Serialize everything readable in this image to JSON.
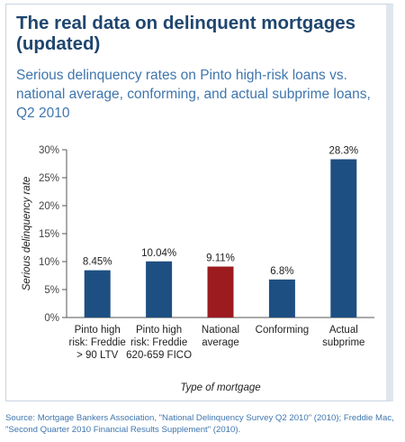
{
  "title": "The real data on delinquent mortgages (updated)",
  "subtitle": "Serious delinquency rates on Pinto high-risk loans vs. national average, conforming, and actual subprime loans, Q2 2010",
  "source": "Source: Mortgage Bankers Association, \"National Delinquency Survey Q2 2010\" (2010); Freddie Mac, \"Second Quarter 2010 Financial Results Supplement\" (2010).",
  "colors": {
    "bar_default": "#1e4f82",
    "bar_highlight": "#9c1b1f",
    "title": "#1f466f",
    "subtitle": "#3f76ae",
    "axis_text": "#444444"
  },
  "chart_data": {
    "type": "bar",
    "categories": [
      [
        "Pinto high",
        "risk: Freddie",
        "> 90 LTV"
      ],
      [
        "Pinto high",
        "risk: Freddie",
        "620-659 FICO"
      ],
      [
        "National",
        "average"
      ],
      [
        "Conforming"
      ],
      [
        "Actual",
        "subprime"
      ]
    ],
    "values": [
      8.45,
      10.04,
      9.11,
      6.8,
      28.3
    ],
    "value_labels": [
      "8.45%",
      "10.04%",
      "9.11%",
      "6.8%",
      "28.3%"
    ],
    "highlight_index": 2,
    "xlabel": "Type of mortgage",
    "ylabel": "Serious delinquency rate",
    "ylim": [
      0,
      30
    ],
    "yticks": [
      0,
      5,
      10,
      15,
      20,
      25,
      30
    ],
    "ytick_labels": [
      "0%",
      "5%",
      "10%",
      "15%",
      "20%",
      "25%",
      "30%"
    ],
    "grid": false,
    "legend": "none"
  }
}
